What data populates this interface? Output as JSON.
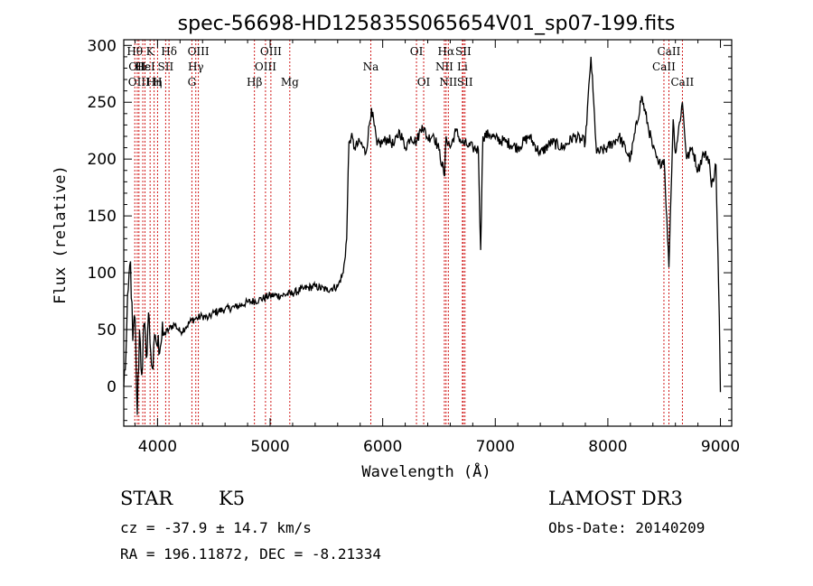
{
  "chart_data": {
    "type": "line",
    "title": "spec-56698-HD125835S065654V01_sp07-199.fits",
    "xlabel": "Wavelength (Å)",
    "ylabel": "Flux (relative)",
    "xlim": [
      3700,
      9100
    ],
    "ylim": [
      -35,
      305
    ],
    "xticks": [
      4000,
      5000,
      6000,
      7000,
      8000,
      9000
    ],
    "yticks": [
      0,
      50,
      100,
      150,
      200,
      250,
      300
    ],
    "grid": false,
    "legend": "none",
    "line_color": "#000000",
    "marker_color": "#cc0000",
    "series": [
      {
        "x": [
          3700,
          3720,
          3740,
          3760,
          3780,
          3800,
          3820,
          3840,
          3860,
          3880,
          3900,
          3920,
          3940,
          3960,
          3980,
          4000,
          4050,
          4100,
          4150,
          4200,
          4250,
          4300,
          4350,
          4400,
          4450,
          4500,
          4600,
          4700,
          4800,
          4900,
          5000,
          5100,
          5200,
          5300,
          5400,
          5500,
          5600,
          5650,
          5680,
          5700,
          5720,
          5750,
          5800,
          5850,
          5900,
          5950,
          6000,
          6050,
          6100,
          6150,
          6200,
          6250,
          6300,
          6350,
          6400,
          6450,
          6500,
          6550,
          6563,
          6600,
          6650,
          6700,
          6750,
          6800,
          6850,
          6870,
          6890,
          6950,
          7000,
          7100,
          7200,
          7300,
          7400,
          7500,
          7600,
          7700,
          7800,
          7850,
          7900,
          8000,
          8100,
          8200,
          8300,
          8400,
          8450,
          8500,
          8542,
          8580,
          8600,
          8662,
          8700,
          8750,
          8800,
          8850,
          8900,
          8920,
          8960,
          8990,
          9000
        ],
        "y": [
          0,
          30,
          85,
          110,
          40,
          60,
          -25,
          50,
          10,
          55,
          25,
          65,
          30,
          15,
          45,
          35,
          45,
          50,
          55,
          48,
          52,
          58,
          60,
          62,
          60,
          65,
          68,
          70,
          74,
          76,
          80,
          80,
          82,
          86,
          88,
          85,
          88,
          100,
          130,
          215,
          220,
          210,
          215,
          205,
          245,
          212,
          215,
          218,
          212,
          225,
          210,
          220,
          215,
          230,
          218,
          222,
          208,
          185,
          220,
          210,
          225,
          215,
          212,
          210,
          208,
          120,
          220,
          222,
          218,
          215,
          210,
          220,
          205,
          215,
          210,
          220,
          215,
          290,
          205,
          210,
          220,
          200,
          255,
          210,
          195,
          200,
          105,
          235,
          205,
          250,
          200,
          210,
          190,
          205,
          200,
          175,
          195,
          60,
          -5
        ]
      }
    ],
    "lines": [
      {
        "x": 3798,
        "label": "Hθ",
        "row": 1
      },
      {
        "x": 3820,
        "label": "OII",
        "row": 2
      },
      {
        "x": 3835,
        "label": "OIII",
        "row": 3
      },
      {
        "x": 3869,
        "label": "Hε",
        "row": 2
      },
      {
        "x": 3889,
        "label": "HeI",
        "row": 2
      },
      {
        "x": 3934,
        "label": "K",
        "row": 1
      },
      {
        "x": 3970,
        "label": "Hη",
        "row": 3
      },
      {
        "x": 4000,
        "label": "H",
        "row": 3
      },
      {
        "x": 4072,
        "label": "SII",
        "row": 2
      },
      {
        "x": 4102,
        "label": "Hδ",
        "row": 1
      },
      {
        "x": 4305,
        "label": "G",
        "row": 3
      },
      {
        "x": 4340,
        "label": "Hγ",
        "row": 2
      },
      {
        "x": 4363,
        "label": "OIII",
        "row": 1
      },
      {
        "x": 4861,
        "label": "Hβ",
        "row": 3
      },
      {
        "x": 4959,
        "label": "OIII",
        "row": 2
      },
      {
        "x": 5007,
        "label": "OIII",
        "row": 1
      },
      {
        "x": 5175,
        "label": "Mg",
        "row": 3
      },
      {
        "x": 5894,
        "label": "Na",
        "row": 2
      },
      {
        "x": 6300,
        "label": "OI",
        "row": 1
      },
      {
        "x": 6364,
        "label": "OI",
        "row": 3
      },
      {
        "x": 6548,
        "label": "NII",
        "row": 2
      },
      {
        "x": 6563,
        "label": "Hα",
        "row": 1
      },
      {
        "x": 6583,
        "label": "NII",
        "row": 3
      },
      {
        "x": 6708,
        "label": "Li",
        "row": 2
      },
      {
        "x": 6716,
        "label": "SII",
        "row": 1
      },
      {
        "x": 6731,
        "label": "SII",
        "row": 3
      },
      {
        "x": 8498,
        "label": "CaII",
        "row": 2
      },
      {
        "x": 8542,
        "label": "CaII",
        "row": 1
      },
      {
        "x": 8662,
        "label": "CaII",
        "row": 3
      }
    ]
  },
  "info": {
    "object_class": "STAR",
    "subclass": "K5",
    "survey": "LAMOST DR3",
    "redshift": "cz = -37.9 ± 14.7 km/s",
    "obs_date": "Obs-Date: 20140209",
    "coords": "RA = 196.11872, DEC =  -8.21334"
  }
}
